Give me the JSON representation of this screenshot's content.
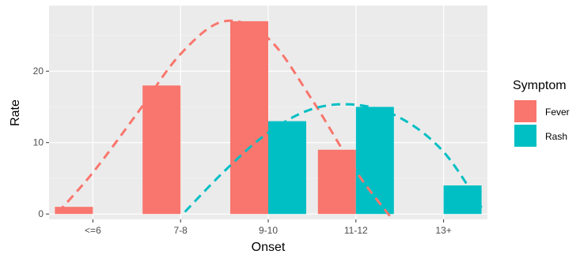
{
  "chart_data": {
    "type": "bar",
    "xlabel": "Onset",
    "ylabel": "Rate",
    "categories": [
      "<=6",
      "7-8",
      "9-10",
      "11-12",
      "13+"
    ],
    "series": [
      {
        "name": "Fever",
        "values": [
          1,
          18,
          27,
          9,
          0
        ]
      },
      {
        "name": "Rash",
        "values": [
          0,
          0,
          13,
          15,
          4
        ]
      }
    ],
    "curves": [
      {
        "series": "Fever",
        "style": "dashed",
        "x": [
          0.6,
          1.0,
          1.5,
          2.0,
          2.5,
          3.0,
          3.5,
          4.0,
          4.42
        ],
        "y": [
          0.2,
          5.8,
          14.0,
          22.4,
          27.0,
          24.6,
          16.0,
          6.0,
          -0.8
        ]
      },
      {
        "series": "Rash",
        "style": "dashed",
        "x": [
          2.05,
          2.5,
          3.0,
          3.5,
          4.0,
          4.5,
          5.0,
          5.45
        ],
        "y": [
          0.3,
          6.0,
          11.4,
          14.7,
          15.3,
          13.5,
          8.7,
          0.6
        ]
      }
    ],
    "ylim": [
      -0.75,
      29.2
    ],
    "yticks": [
      0,
      10,
      20
    ],
    "legend": {
      "title": "Symptom",
      "position": "right"
    },
    "grid": true,
    "colors": {
      "Fever": "#F8766D",
      "Rash": "#00BFC4",
      "panel": "#EBEBEB",
      "grid": "#FFFFFF"
    }
  }
}
